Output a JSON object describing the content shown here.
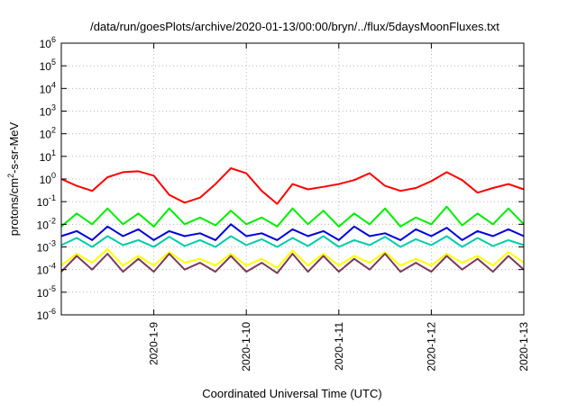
{
  "chart_data": {
    "type": "line",
    "title": "/data/run/goesPlots/archive/2020-01-13/00:00/bryn/../flux/5daysMoonFluxes.txt",
    "xlabel": "Coordinated Universal Time (UTC)",
    "ylabel_parts": {
      "pre": "protons/cm",
      "sup": "2",
      "post": "-s-sr-MeV"
    },
    "y_scale": "log",
    "ylim": [
      1e-06,
      1000000.0
    ],
    "y_ticks": [
      {
        "value": 1e-06,
        "base": "10",
        "exp": "-6"
      },
      {
        "value": 1e-05,
        "base": "10",
        "exp": "-5"
      },
      {
        "value": 0.0001,
        "base": "10",
        "exp": "-4"
      },
      {
        "value": 0.001,
        "base": "10",
        "exp": "-3"
      },
      {
        "value": 0.01,
        "base": "10",
        "exp": "-2"
      },
      {
        "value": 0.1,
        "base": "10",
        "exp": "-1"
      },
      {
        "value": 1.0,
        "base": "10",
        "exp": "0"
      },
      {
        "value": 10.0,
        "base": "10",
        "exp": "1"
      },
      {
        "value": 100.0,
        "base": "10",
        "exp": "2"
      },
      {
        "value": 1000.0,
        "base": "10",
        "exp": "3"
      },
      {
        "value": 10000.0,
        "base": "10",
        "exp": "4"
      },
      {
        "value": 100000.0,
        "base": "10",
        "exp": "5"
      },
      {
        "value": 1000000.0,
        "base": "10",
        "exp": "6"
      }
    ],
    "xlim": [
      "2020-01-08T00:00",
      "2020-01-13T00:00"
    ],
    "x_ticks": [
      {
        "value": "2020-01-09T00:00",
        "label": "2020-1-9"
      },
      {
        "value": "2020-01-10T00:00",
        "label": "2020-1-10"
      },
      {
        "value": "2020-01-11T00:00",
        "label": "2020-1-11"
      },
      {
        "value": "2020-01-12T00:00",
        "label": "2020-1-12"
      },
      {
        "value": "2020-01-13T00:00",
        "label": "2020-1-13"
      }
    ],
    "grid": true,
    "series": [
      {
        "color": "#ff0000",
        "x": [
          "2020-01-08T00:00",
          "2020-01-08T04:00",
          "2020-01-08T08:00",
          "2020-01-08T12:00",
          "2020-01-08T16:00",
          "2020-01-08T20:00",
          "2020-01-09T00:00",
          "2020-01-09T04:00",
          "2020-01-09T08:00",
          "2020-01-09T12:00",
          "2020-01-09T16:00",
          "2020-01-09T20:00",
          "2020-01-10T00:00",
          "2020-01-10T04:00",
          "2020-01-10T08:00",
          "2020-01-10T12:00",
          "2020-01-10T16:00",
          "2020-01-10T20:00",
          "2020-01-11T00:00",
          "2020-01-11T04:00",
          "2020-01-11T08:00",
          "2020-01-11T12:00",
          "2020-01-11T16:00",
          "2020-01-11T20:00",
          "2020-01-12T00:00",
          "2020-01-12T04:00",
          "2020-01-12T08:00",
          "2020-01-12T12:00",
          "2020-01-12T16:00",
          "2020-01-12T20:00",
          "2020-01-13T00:00"
        ],
        "y": [
          1.0,
          0.5,
          0.3,
          1.2,
          2.0,
          2.2,
          1.4,
          0.2,
          0.09,
          0.15,
          0.6,
          3.0,
          1.8,
          0.3,
          0.08,
          0.6,
          0.35,
          0.45,
          0.6,
          0.9,
          1.8,
          0.5,
          0.3,
          0.4,
          0.8,
          2.0,
          0.9,
          0.25,
          0.4,
          0.6,
          0.35
        ]
      },
      {
        "color": "#00ee00",
        "x": [
          "2020-01-08T00:00",
          "2020-01-08T04:00",
          "2020-01-08T08:00",
          "2020-01-08T12:00",
          "2020-01-08T16:00",
          "2020-01-08T20:00",
          "2020-01-09T00:00",
          "2020-01-09T04:00",
          "2020-01-09T08:00",
          "2020-01-09T12:00",
          "2020-01-09T16:00",
          "2020-01-09T20:00",
          "2020-01-10T00:00",
          "2020-01-10T04:00",
          "2020-01-10T08:00",
          "2020-01-10T12:00",
          "2020-01-10T16:00",
          "2020-01-10T20:00",
          "2020-01-11T00:00",
          "2020-01-11T04:00",
          "2020-01-11T08:00",
          "2020-01-11T12:00",
          "2020-01-11T16:00",
          "2020-01-11T20:00",
          "2020-01-12T00:00",
          "2020-01-12T04:00",
          "2020-01-12T08:00",
          "2020-01-12T12:00",
          "2020-01-12T16:00",
          "2020-01-12T20:00",
          "2020-01-13T00:00"
        ],
        "y": [
          0.008,
          0.03,
          0.01,
          0.05,
          0.01,
          0.03,
          0.008,
          0.05,
          0.01,
          0.02,
          0.009,
          0.04,
          0.01,
          0.02,
          0.008,
          0.05,
          0.01,
          0.04,
          0.008,
          0.03,
          0.01,
          0.05,
          0.008,
          0.02,
          0.01,
          0.06,
          0.009,
          0.03,
          0.01,
          0.05,
          0.01
        ]
      },
      {
        "color": "#0000dd",
        "x": [
          "2020-01-08T00:00",
          "2020-01-08T04:00",
          "2020-01-08T08:00",
          "2020-01-08T12:00",
          "2020-01-08T16:00",
          "2020-01-08T20:00",
          "2020-01-09T00:00",
          "2020-01-09T04:00",
          "2020-01-09T08:00",
          "2020-01-09T12:00",
          "2020-01-09T16:00",
          "2020-01-09T20:00",
          "2020-01-10T00:00",
          "2020-01-10T04:00",
          "2020-01-10T08:00",
          "2020-01-10T12:00",
          "2020-01-10T16:00",
          "2020-01-10T20:00",
          "2020-01-11T00:00",
          "2020-01-11T04:00",
          "2020-01-11T08:00",
          "2020-01-11T12:00",
          "2020-01-11T16:00",
          "2020-01-11T20:00",
          "2020-01-12T00:00",
          "2020-01-12T04:00",
          "2020-01-12T08:00",
          "2020-01-12T12:00",
          "2020-01-12T16:00",
          "2020-01-12T20:00",
          "2020-01-13T00:00"
        ],
        "y": [
          0.003,
          0.005,
          0.002,
          0.008,
          0.003,
          0.006,
          0.002,
          0.005,
          0.003,
          0.004,
          0.002,
          0.01,
          0.003,
          0.004,
          0.002,
          0.006,
          0.003,
          0.005,
          0.002,
          0.008,
          0.003,
          0.004,
          0.002,
          0.006,
          0.003,
          0.007,
          0.002,
          0.005,
          0.003,
          0.006,
          0.003
        ]
      },
      {
        "color": "#00ccaa",
        "x": [
          "2020-01-08T00:00",
          "2020-01-08T04:00",
          "2020-01-08T08:00",
          "2020-01-08T12:00",
          "2020-01-08T16:00",
          "2020-01-08T20:00",
          "2020-01-09T00:00",
          "2020-01-09T04:00",
          "2020-01-09T08:00",
          "2020-01-09T12:00",
          "2020-01-09T16:00",
          "2020-01-09T20:00",
          "2020-01-10T00:00",
          "2020-01-10T04:00",
          "2020-01-10T08:00",
          "2020-01-10T12:00",
          "2020-01-10T16:00",
          "2020-01-10T20:00",
          "2020-01-11T00:00",
          "2020-01-11T04:00",
          "2020-01-11T08:00",
          "2020-01-11T12:00",
          "2020-01-11T16:00",
          "2020-01-11T20:00",
          "2020-01-12T00:00",
          "2020-01-12T04:00",
          "2020-01-12T08:00",
          "2020-01-12T12:00",
          "2020-01-12T16:00",
          "2020-01-12T20:00",
          "2020-01-13T00:00"
        ],
        "y": [
          0.0012,
          0.0025,
          0.001,
          0.003,
          0.0012,
          0.002,
          0.001,
          0.0028,
          0.0011,
          0.002,
          0.001,
          0.003,
          0.0012,
          0.0022,
          0.001,
          0.0025,
          0.0011,
          0.003,
          0.001,
          0.002,
          0.0012,
          0.0028,
          0.001,
          0.0022,
          0.0012,
          0.003,
          0.001,
          0.0025,
          0.0011,
          0.002,
          0.0012
        ]
      },
      {
        "color": "#ffff00",
        "x": [
          "2020-01-08T00:00",
          "2020-01-08T04:00",
          "2020-01-08T08:00",
          "2020-01-08T12:00",
          "2020-01-08T16:00",
          "2020-01-08T20:00",
          "2020-01-09T00:00",
          "2020-01-09T04:00",
          "2020-01-09T08:00",
          "2020-01-09T12:00",
          "2020-01-09T16:00",
          "2020-01-09T20:00",
          "2020-01-10T00:00",
          "2020-01-10T04:00",
          "2020-01-10T08:00",
          "2020-01-10T12:00",
          "2020-01-10T16:00",
          "2020-01-10T20:00",
          "2020-01-11T00:00",
          "2020-01-11T04:00",
          "2020-01-11T08:00",
          "2020-01-11T12:00",
          "2020-01-11T16:00",
          "2020-01-11T20:00",
          "2020-01-12T00:00",
          "2020-01-12T04:00",
          "2020-01-12T08:00",
          "2020-01-12T12:00",
          "2020-01-12T16:00",
          "2020-01-12T20:00",
          "2020-01-13T00:00"
        ],
        "y": [
          0.00015,
          0.0005,
          0.0002,
          0.0008,
          0.00015,
          0.0004,
          0.00015,
          0.0006,
          0.0002,
          0.0003,
          0.00015,
          0.0005,
          0.00015,
          0.0003,
          0.00012,
          0.0007,
          0.00015,
          0.0005,
          0.00015,
          0.0004,
          0.0002,
          0.0006,
          0.00015,
          0.0003,
          0.00015,
          0.0005,
          0.0002,
          0.0004,
          0.00015,
          0.0006,
          0.0002
        ]
      },
      {
        "color": "#7b3a5a",
        "x": [
          "2020-01-08T00:00",
          "2020-01-08T04:00",
          "2020-01-08T08:00",
          "2020-01-08T12:00",
          "2020-01-08T16:00",
          "2020-01-08T20:00",
          "2020-01-09T00:00",
          "2020-01-09T04:00",
          "2020-01-09T08:00",
          "2020-01-09T12:00",
          "2020-01-09T16:00",
          "2020-01-09T20:00",
          "2020-01-10T00:00",
          "2020-01-10T04:00",
          "2020-01-10T08:00",
          "2020-01-10T12:00",
          "2020-01-10T16:00",
          "2020-01-10T20:00",
          "2020-01-11T00:00",
          "2020-01-11T04:00",
          "2020-01-11T08:00",
          "2020-01-11T12:00",
          "2020-01-11T16:00",
          "2020-01-11T20:00",
          "2020-01-12T00:00",
          "2020-01-12T04:00",
          "2020-01-12T08:00",
          "2020-01-12T12:00",
          "2020-01-12T16:00",
          "2020-01-12T20:00",
          "2020-01-13T00:00"
        ],
        "y": [
          8e-05,
          0.0004,
          0.0001,
          0.0005,
          8e-05,
          0.0003,
          8e-05,
          0.0005,
          0.0001,
          0.0002,
          8e-05,
          0.0004,
          8e-05,
          0.0002,
          7e-05,
          0.0005,
          8e-05,
          0.0004,
          8e-05,
          0.0003,
          0.0001,
          0.0005,
          8e-05,
          0.0002,
          8e-05,
          0.0004,
          0.0001,
          0.0003,
          8e-05,
          0.0004,
          0.0001
        ]
      }
    ]
  }
}
